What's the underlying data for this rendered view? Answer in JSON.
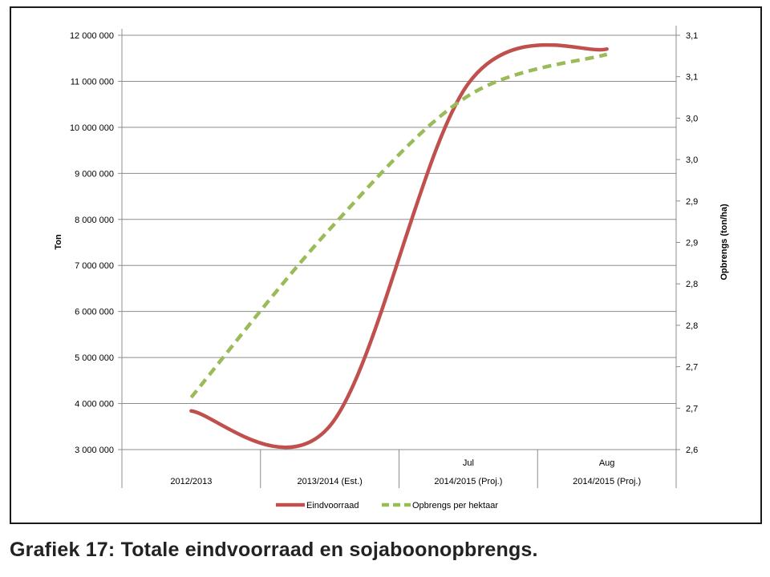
{
  "caption": "Grafiek 17: Totale eindvoorraad en sojaboonopbrengs.",
  "chart_data": {
    "type": "line",
    "categories": [
      {
        "top": "",
        "bottom": "2012/2013"
      },
      {
        "top": "",
        "bottom": "2013/2014 (Est.)"
      },
      {
        "top": "Jul",
        "bottom": "2014/2015 (Proj.)"
      },
      {
        "top": "Aug",
        "bottom": "2014/2015 (Proj.)"
      }
    ],
    "ylabel": "Ton",
    "y2label": "Opbrengs (ton/ha)",
    "ylim": [
      3000000,
      12000000
    ],
    "y2lim": [
      2.6,
      3.1
    ],
    "y_ticks": [
      "3 000 000",
      "4 000 000",
      "5 000 000",
      "6 000 000",
      "7 000 000",
      "8 000 000",
      "9 000 000",
      "10 000 000",
      "11 000 000",
      "12 000 000"
    ],
    "y2_ticks": [
      "2,6",
      "2,7",
      "2,7",
      "2,8",
      "2,8",
      "2,9",
      "2,9",
      "3,0",
      "3,0",
      "3,1",
      "3,1"
    ],
    "grid": true,
    "legend_position": "bottom",
    "series": [
      {
        "name": "Eindvoorraad",
        "axis": "left",
        "color": "#c0504d",
        "style": "solid",
        "values": [
          3840000,
          3510000,
          10950000,
          11700000
        ]
      },
      {
        "name": "Opbrengs per hektaar",
        "axis": "right",
        "color": "#9bbb59",
        "style": "dashed",
        "values": [
          2.663,
          2.866,
          3.027,
          3.077
        ]
      }
    ]
  }
}
